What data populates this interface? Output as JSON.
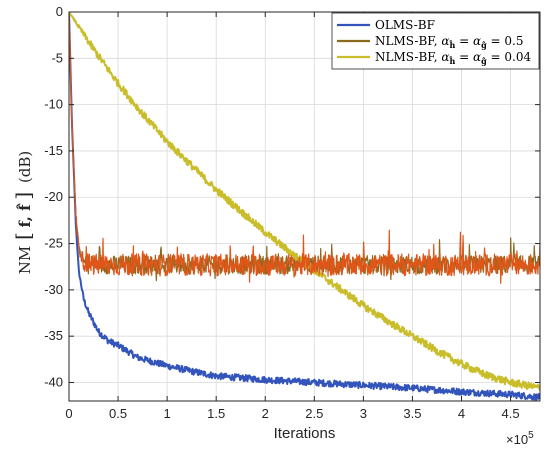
{
  "chart_data": {
    "type": "line",
    "xlabel": "Iterations",
    "x_exponent_label": "×10",
    "x_exponent_power": "5",
    "ylabel_prefix": "NM",
    "ylabel_args": "f, f̂",
    "ylabel_unit": "(dB)",
    "xlim": [
      0,
      4.8
    ],
    "ylim": [
      -42,
      0
    ],
    "x_ticks": [
      0,
      0.5,
      1,
      1.5,
      2,
      2.5,
      3,
      3.5,
      4,
      4.5
    ],
    "x_tick_labels": [
      "0",
      "0.5",
      "1",
      "1.5",
      "2",
      "2.5",
      "3",
      "3.5",
      "4",
      "4.5"
    ],
    "y_ticks": [
      0,
      -5,
      -10,
      -15,
      -20,
      -25,
      -30,
      -35,
      -40
    ],
    "y_tick_labels": [
      "0",
      "-5",
      "-10",
      "-15",
      "-20",
      "-25",
      "-30",
      "-35",
      "-40"
    ],
    "grid": true,
    "legend_position": "top-right",
    "x_units_note": "iterations ×10^5",
    "series": [
      {
        "name": "OLMS-BF",
        "legend_text": "OLMS-BF",
        "color": "#3355bb",
        "noise_db": 0.35,
        "x": [
          0,
          0.03,
          0.07,
          0.1,
          0.15,
          0.2,
          0.3,
          0.4,
          0.5,
          0.7,
          1.0,
          1.3,
          1.5,
          2.0,
          2.5,
          3.0,
          3.5,
          4.0,
          4.5,
          4.8
        ],
        "y": [
          0,
          -12,
          -23,
          -28,
          -31,
          -32.5,
          -34.5,
          -35.5,
          -36,
          -37.3,
          -38.2,
          -38.9,
          -39.3,
          -39.7,
          -40.0,
          -40.3,
          -40.6,
          -41.0,
          -41.3,
          -41.6
        ]
      },
      {
        "name": "NLMS-BF, α = 0.5",
        "legend_text": "NLMS-BF, ",
        "legend_math": "= 0.5",
        "color": "#8b6a1f",
        "noise_db": 1.0,
        "x": [
          0,
          0.03,
          0.07,
          0.1,
          0.15,
          0.2,
          0.25,
          0.4,
          1.0,
          2.0,
          3.0,
          4.0,
          4.8
        ],
        "y": [
          0,
          -12,
          -22,
          -25.5,
          -27,
          -27.3,
          -27.3,
          -27.3,
          -27.3,
          -27.3,
          -27.3,
          -27.3,
          -27.3
        ]
      },
      {
        "name": "NLMS-BF, α = 0.04",
        "legend_text": "NLMS-BF, ",
        "legend_math": "= 0.04",
        "color": "#c9bd2a",
        "noise_db": 0.4,
        "x": [
          0,
          0.25,
          0.5,
          0.75,
          1.0,
          1.25,
          1.5,
          1.75,
          2.0,
          2.25,
          2.5,
          2.75,
          3.0,
          3.25,
          3.5,
          3.75,
          4.0,
          4.25,
          4.5,
          4.8
        ],
        "y": [
          0,
          -4,
          -7.7,
          -11.0,
          -14.0,
          -16.6,
          -19.2,
          -21.5,
          -23.8,
          -25.9,
          -27.9,
          -29.8,
          -31.7,
          -33.4,
          -35.0,
          -36.6,
          -38.0,
          -39.2,
          -40.0,
          -40.6
        ]
      },
      {
        "name": "NLMS-BF, α = 0.5 (overlay)",
        "color": "#e05518",
        "noise_db": 1.2,
        "x": [
          0,
          0.03,
          0.07,
          0.1,
          0.15,
          0.2,
          0.25,
          0.4,
          1.0,
          2.0,
          3.0,
          4.0,
          4.8
        ],
        "y": [
          0,
          -12,
          -22,
          -25.5,
          -27,
          -27.3,
          -27.3,
          -27.3,
          -27.3,
          -27.3,
          -27.3,
          -27.3,
          -27.3
        ]
      }
    ]
  }
}
